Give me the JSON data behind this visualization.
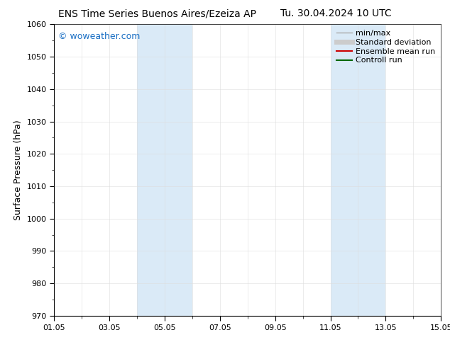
{
  "title_left": "ENS Time Series Buenos Aires/Ezeiza AP",
  "title_right": "Tu. 30.04.2024 10 UTC",
  "ylabel": "Surface Pressure (hPa)",
  "ylim": [
    970,
    1060
  ],
  "yticks": [
    970,
    980,
    990,
    1000,
    1010,
    1020,
    1030,
    1040,
    1050,
    1060
  ],
  "xstart_day": 0,
  "xend_day": 14,
  "xtick_labels": [
    "01.05",
    "03.05",
    "05.05",
    "07.05",
    "09.05",
    "11.05",
    "13.05",
    "15.05"
  ],
  "xtick_positions_days": [
    0,
    2,
    4,
    6,
    8,
    10,
    12,
    14
  ],
  "shaded_regions": [
    {
      "start_day": 3,
      "end_day": 4
    },
    {
      "start_day": 4,
      "end_day": 5
    },
    {
      "start_day": 10,
      "end_day": 11
    },
    {
      "start_day": 11,
      "end_day": 12
    }
  ],
  "shaded_color": "#daeaf7",
  "watermark_text": "© woweather.com",
  "watermark_color": "#1a6fc4",
  "watermark_fontsize": 9,
  "background_color": "#ffffff",
  "legend_items": [
    {
      "label": "min/max",
      "color": "#aaaaaa",
      "lw": 1.0
    },
    {
      "label": "Standard deviation",
      "color": "#cccccc",
      "lw": 5
    },
    {
      "label": "Ensemble mean run",
      "color": "#cc0000",
      "lw": 1.5
    },
    {
      "label": "Controll run",
      "color": "#006600",
      "lw": 1.5
    }
  ],
  "title_fontsize": 10,
  "axis_fontsize": 9,
  "tick_fontsize": 8,
  "legend_fontsize": 8,
  "fig_width": 6.34,
  "fig_height": 4.9,
  "dpi": 100
}
